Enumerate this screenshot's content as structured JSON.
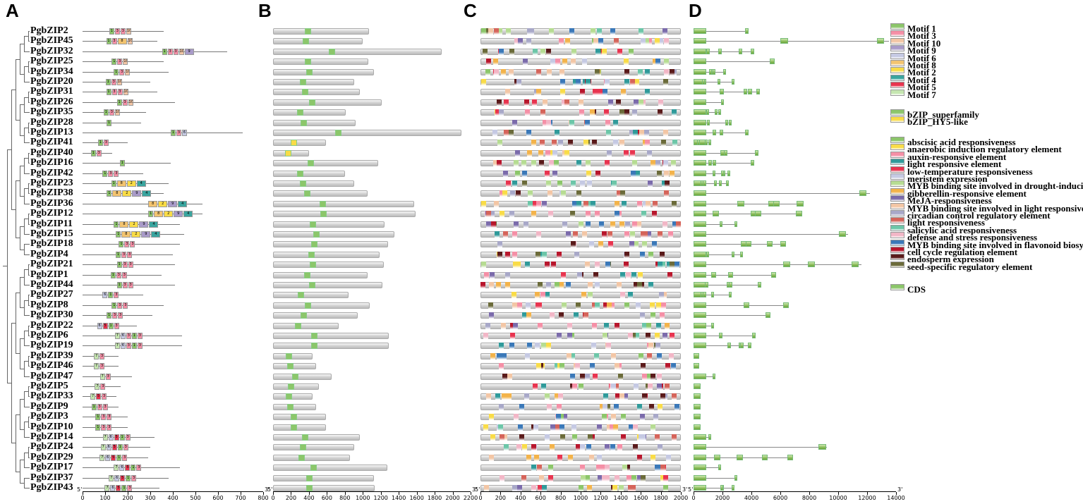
{
  "panels": {
    "A": "A",
    "B": "B",
    "C": "C",
    "D": "D"
  },
  "genes": [
    "PgbZIP2",
    "PgbZIP45",
    "PgbZIP32",
    "PgbZIP25",
    "PgbZIP34",
    "PgbZIP20",
    "PgbZIP31",
    "PgbZIP26",
    "PgbZIP35",
    "PgbZIP28",
    "PgbZIP13",
    "PgbZIP41",
    "PgbZIP40",
    "PgbZIP16",
    "PgbZIP42",
    "PgbZIP23",
    "PgbZIP38",
    "PgbZIP36",
    "PgbZIP12",
    "PgbZIP11",
    "PgbZIP15",
    "PgbZIP18",
    "PgbZIP4",
    "PgbZIP21",
    "PgbZIP1",
    "PgbZIP44",
    "PgbZIP27",
    "PgbZIP8",
    "PgbZIP30",
    "PgbZIP22",
    "PgbZIP6",
    "PgbZIP19",
    "PgbZIP39",
    "PgbZIP46",
    "PgbZIP47",
    "PgbZIP5",
    "PgbZIP33",
    "PgbZIP9",
    "PgbZIP3",
    "PgbZIP10",
    "PgbZIP14",
    "PgbZIP24",
    "PgbZIP29",
    "PgbZIP17",
    "PgbZIP37",
    "PgbZIP43"
  ],
  "protein_lengths_aa": [
    360,
    330,
    640,
    360,
    380,
    300,
    330,
    410,
    280,
    260,
    710,
    200,
    130,
    390,
    270,
    380,
    360,
    530,
    530,
    430,
    450,
    430,
    400,
    410,
    350,
    410,
    270,
    360,
    310,
    240,
    440,
    440,
    160,
    160,
    220,
    170,
    150,
    160,
    200,
    200,
    320,
    300,
    290,
    430,
    380,
    340
  ],
  "cds_lengths": [
    1070,
    1000,
    1880,
    1060,
    1120,
    900,
    970,
    1210,
    810,
    920,
    2100,
    590,
    400,
    1170,
    800,
    900,
    1050,
    1570,
    1590,
    1240,
    1350,
    1280,
    1190,
    1230,
    1050,
    1220,
    840,
    1080,
    940,
    730,
    1290,
    1290,
    440,
    480,
    650,
    510,
    440,
    480,
    590,
    590,
    970,
    900,
    860,
    1270,
    1120,
    1130
  ],
  "promoter_length": 2000,
  "gene_lengths_bp": [
    3800,
    13500,
    4200,
    5600,
    2200,
    2800,
    4600,
    2000,
    1800,
    2600,
    3800,
    1100,
    4500,
    4200,
    2500,
    2400,
    12200,
    7600,
    7500,
    3000,
    10700,
    6400,
    3400,
    11600,
    5700,
    4700,
    2600,
    6600,
    5300,
    1300,
    4300,
    4000,
    400,
    400,
    1400,
    500,
    500,
    500,
    500,
    500,
    1100,
    9200,
    6900,
    1800,
    3000,
    2800
  ],
  "motif_legend": [
    {
      "name": "Motif 1",
      "color": "#8cc66a"
    },
    {
      "name": "Motif 3",
      "color": "#f58fa6"
    },
    {
      "name": "Motif 10",
      "color": "#f3c6a5"
    },
    {
      "name": "Motif 9",
      "color": "#a99bc9"
    },
    {
      "name": "Motif 6",
      "color": "#c5c9e3"
    },
    {
      "name": "Motif 8",
      "color": "#f3c470"
    },
    {
      "name": "Motif 2",
      "color": "#f9dc47"
    },
    {
      "name": "Motif 4",
      "color": "#3aa59f"
    },
    {
      "name": "Motif 5",
      "color": "#e8344f"
    },
    {
      "name": "Motif 7",
      "color": "#c5e6b0"
    }
  ],
  "domain_legend": [
    {
      "name": "bZIP_superfamily",
      "color": "#8cc66a"
    },
    {
      "name": "bZIP_HY5-like",
      "color": "#f9dc47"
    }
  ],
  "element_legend": [
    {
      "name": "abscisic acid responsiveness",
      "color": "#8cc66a"
    },
    {
      "name": "anaerobic induction regulatory element",
      "color": "#f9dc47"
    },
    {
      "name": "auxin-responsive element",
      "color": "#f58fa6"
    },
    {
      "name": "light responsive element",
      "color": "#2f9a9a"
    },
    {
      "name": "low-temperature responsiveness",
      "color": "#e8344f"
    },
    {
      "name": "meristem expression",
      "color": "#c5c9e3"
    },
    {
      "name": "MYB binding site involved in drought-inducibility",
      "color": "#b6dc92"
    },
    {
      "name": "gibberellin-responsive element",
      "color": "#f3b34a"
    },
    {
      "name": "MeJA-responsiveness",
      "color": "#7b6bab"
    },
    {
      "name": "MYB binding site involved in light responsiveness",
      "color": "#f3c6a5"
    },
    {
      "name": "circadian control regulatory element",
      "color": "#a8a8c8"
    },
    {
      "name": "light responsiveness",
      "color": "#d5645a"
    },
    {
      "name": "salicylic acid responsiveness",
      "color": "#6cc6a8"
    },
    {
      "name": "defense and stress responsiveness",
      "color": "#f2b6c6"
    },
    {
      "name": "MYB binding site involved in flavonoid biosynthetic genes regulation",
      "color": "#3a78b8"
    },
    {
      "name": "cell cycle regulation element",
      "color": "#b8162c"
    },
    {
      "name": "endosperm expression",
      "color": "#5a1a1a"
    },
    {
      "name": "seed-specific regulatory element",
      "color": "#6b6b3a"
    }
  ],
  "gene_structure_legend": [
    {
      "name": "CDS",
      "color": "#8cc66a"
    }
  ],
  "axes": {
    "A": {
      "ticks": [
        "0",
        "100",
        "200",
        "300",
        "400",
        "500",
        "600",
        "700",
        "800"
      ],
      "start": "5'",
      "end": "3'"
    },
    "B": {
      "ticks": [
        "0",
        "200",
        "400",
        "600",
        "800",
        "1000",
        "1200",
        "1400",
        "1600",
        "1800",
        "2000",
        "2200"
      ],
      "start": "5'",
      "end": "3'"
    },
    "C": {
      "ticks": [
        "0",
        "200",
        "400",
        "600",
        "800",
        "1000",
        "1200",
        "1400",
        "1600",
        "1800",
        "2000"
      ],
      "start": "5'",
      "end": "3'"
    },
    "D": {
      "ticks": [
        "0",
        "2000",
        "4000",
        "6000",
        "8000",
        "10000",
        "12000",
        "14000"
      ],
      "start": "5'",
      "end": "3'"
    }
  }
}
